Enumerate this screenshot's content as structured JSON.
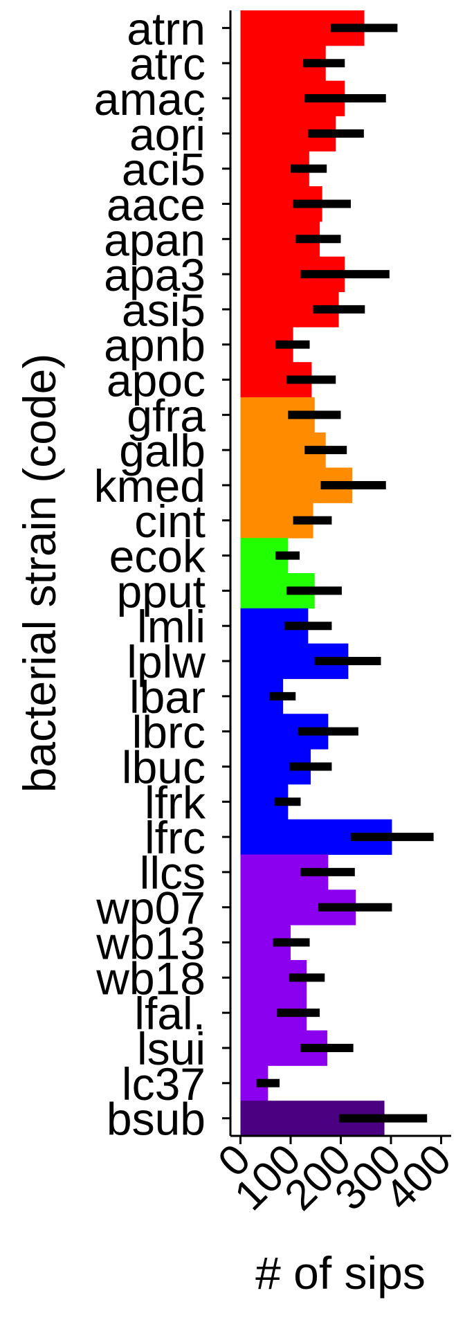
{
  "chart_data": {
    "type": "bar",
    "orientation": "horizontal",
    "title": "",
    "xlabel": "# of sips",
    "ylabel": "bacterial strain (code)",
    "xlim": [
      -20,
      420
    ],
    "xticks": [
      "0",
      "100",
      "200",
      "300",
      "400"
    ],
    "grid": false,
    "legend": "none",
    "categories": [
      "atrn",
      "atrc",
      "amac",
      "aori",
      "aci5",
      "aace",
      "apan",
      "apa3",
      "asi5",
      "apnb",
      "apoc",
      "gfra",
      "galb",
      "kmed",
      "cint",
      "ecok",
      "pput",
      "lmli",
      "lplw",
      "lbar",
      "lbrc",
      "lbuc",
      "lfrk",
      "lfrc",
      "llcs",
      "wp07",
      "wb13",
      "wb18",
      "lfal.",
      "lsui",
      "lc37",
      "bsub"
    ],
    "values": [
      247,
      170,
      208,
      190,
      137,
      163,
      158,
      208,
      196,
      105,
      142,
      148,
      170,
      223,
      145,
      95,
      148,
      135,
      215,
      85,
      175,
      140,
      95,
      302,
      175,
      230,
      100,
      132,
      132,
      173,
      55,
      287
    ],
    "errors": [
      [
        180,
        313
      ],
      [
        125,
        208
      ],
      [
        128,
        290
      ],
      [
        135,
        246
      ],
      [
        100,
        172
      ],
      [
        105,
        220
      ],
      [
        110,
        200
      ],
      [
        120,
        297
      ],
      [
        145,
        248
      ],
      [
        70,
        138
      ],
      [
        92,
        190
      ],
      [
        95,
        200
      ],
      [
        128,
        212
      ],
      [
        160,
        290
      ],
      [
        105,
        182
      ],
      [
        70,
        118
      ],
      [
        92,
        202
      ],
      [
        88,
        182
      ],
      [
        148,
        280
      ],
      [
        58,
        110
      ],
      [
        115,
        235
      ],
      [
        98,
        182
      ],
      [
        68,
        120
      ],
      [
        220,
        385
      ],
      [
        120,
        228
      ],
      [
        155,
        302
      ],
      [
        65,
        138
      ],
      [
        97,
        168
      ],
      [
        73,
        158
      ],
      [
        120,
        225
      ],
      [
        32,
        78
      ],
      [
        197,
        372
      ]
    ],
    "bar_colors": [
      "#ff0000",
      "#ff0000",
      "#ff0000",
      "#ff0000",
      "#ff0000",
      "#ff0000",
      "#ff0000",
      "#ff0000",
      "#ff0000",
      "#ff0000",
      "#ff0000",
      "#ff8c00",
      "#ff8c00",
      "#ff8c00",
      "#ff8c00",
      "#22ff00",
      "#22ff00",
      "#0000ff",
      "#0000ff",
      "#0000ff",
      "#0000ff",
      "#0000ff",
      "#0000ff",
      "#0000ff",
      "#8b00ee",
      "#8b00ee",
      "#8b00ee",
      "#8b00ee",
      "#8b00ee",
      "#8b00ee",
      "#8b00ee",
      "#4b0082"
    ],
    "error_bar_color": "#000000"
  }
}
